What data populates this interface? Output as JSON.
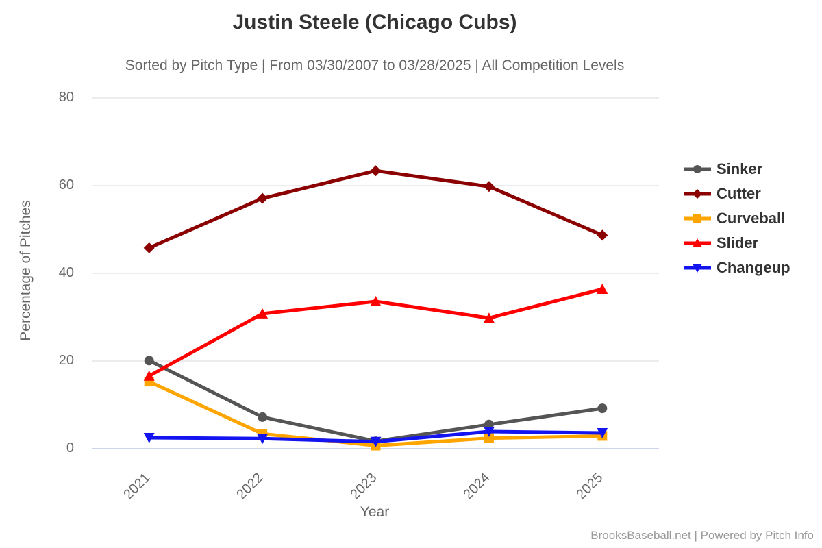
{
  "footer": "BrooksBaseball.net | Powered by Pitch Info",
  "colors": {
    "title": "#333333",
    "subtitle": "#666666",
    "axis_title": "#666666",
    "axis_label": "#666666",
    "legend_text": "#333333",
    "footer_text": "#999999",
    "gridline": "#e6e6e6",
    "baseline": "#ccd6eb"
  },
  "chart_data": {
    "type": "line",
    "title": "Justin Steele (Chicago Cubs)",
    "subtitle": "Sorted by Pitch Type | From 03/30/2007 to 03/28/2025 | All Competition Levels",
    "xlabel": "Year",
    "ylabel": "Percentage of Pitches",
    "categories": [
      "2021",
      "2022",
      "2023",
      "2024",
      "2025"
    ],
    "y_ticks": [
      0,
      20,
      40,
      60,
      80
    ],
    "ylim": [
      0,
      80
    ],
    "grid": true,
    "legend_position": "right",
    "series": [
      {
        "name": "Sinker",
        "color": "#555555",
        "marker": "circle",
        "values": [
          20.1,
          7.2,
          1.7,
          5.5,
          9.2
        ]
      },
      {
        "name": "Cutter",
        "color": "#8b0000",
        "marker": "diamond",
        "values": [
          45.8,
          57.1,
          63.4,
          59.8,
          48.7
        ]
      },
      {
        "name": "Curveball",
        "color": "#ffa500",
        "marker": "square",
        "values": [
          15.3,
          3.4,
          0.7,
          2.4,
          2.9
        ]
      },
      {
        "name": "Slider",
        "color": "#ff0000",
        "marker": "triangle-up",
        "values": [
          16.6,
          30.8,
          33.6,
          29.8,
          36.4
        ]
      },
      {
        "name": "Changeup",
        "color": "#1414f0",
        "marker": "triangle-down",
        "values": [
          2.5,
          2.3,
          1.6,
          3.9,
          3.6
        ]
      }
    ]
  }
}
